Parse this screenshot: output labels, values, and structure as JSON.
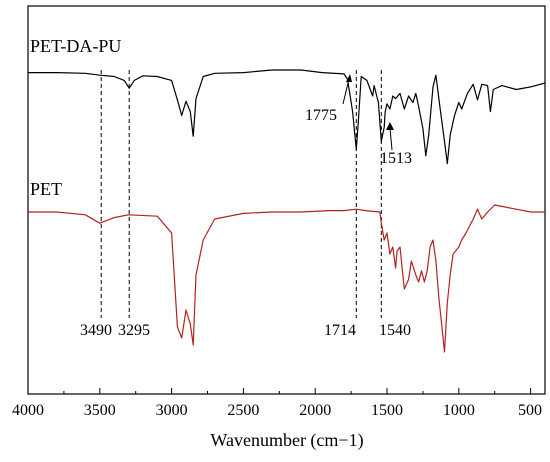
{
  "chart_data": {
    "type": "line",
    "title": "",
    "xlabel": "Wavenumber (cm−1)",
    "ylabel": "",
    "xlim": [
      4000,
      400
    ],
    "x_reversed": true,
    "x_ticks": [
      "4000",
      "3500",
      "3000",
      "2500",
      "2000",
      "1500",
      "1000",
      "500"
    ],
    "x_tick_values": [
      4000,
      3500,
      3000,
      2500,
      2000,
      1500,
      1000,
      500
    ],
    "y_ticks": "none",
    "grid": false,
    "legend": "none",
    "series": [
      {
        "name": "PET-DA-PU",
        "color": "#000000",
        "points": [
          [
            4000,
            0.02
          ],
          [
            3800,
            0.02
          ],
          [
            3600,
            0.025
          ],
          [
            3500,
            0.04
          ],
          [
            3400,
            0.05
          ],
          [
            3330,
            0.08
          ],
          [
            3295,
            0.14
          ],
          [
            3260,
            0.08
          ],
          [
            3200,
            0.045
          ],
          [
            3100,
            0.05
          ],
          [
            3000,
            0.08
          ],
          [
            2960,
            0.23
          ],
          [
            2930,
            0.35
          ],
          [
            2900,
            0.24
          ],
          [
            2870,
            0.32
          ],
          [
            2850,
            0.51
          ],
          [
            2830,
            0.22
          ],
          [
            2780,
            0.05
          ],
          [
            2700,
            0.025
          ],
          [
            2500,
            0.02
          ],
          [
            2300,
            0.0
          ],
          [
            2100,
            0.0
          ],
          [
            1950,
            0.02
          ],
          [
            1800,
            0.03
          ],
          [
            1775,
            0.07
          ],
          [
            1740,
            0.32
          ],
          [
            1714,
            0.61
          ],
          [
            1700,
            0.4
          ],
          [
            1680,
            0.05
          ],
          [
            1640,
            0.08
          ],
          [
            1600,
            0.2
          ],
          [
            1590,
            0.12
          ],
          [
            1560,
            0.25
          ],
          [
            1540,
            0.55
          ],
          [
            1520,
            0.44
          ],
          [
            1513,
            0.32
          ],
          [
            1500,
            0.26
          ],
          [
            1480,
            0.3
          ],
          [
            1460,
            0.2
          ],
          [
            1440,
            0.22
          ],
          [
            1410,
            0.18
          ],
          [
            1380,
            0.3
          ],
          [
            1350,
            0.2
          ],
          [
            1320,
            0.25
          ],
          [
            1300,
            0.18
          ],
          [
            1280,
            0.28
          ],
          [
            1250,
            0.45
          ],
          [
            1230,
            0.66
          ],
          [
            1210,
            0.5
          ],
          [
            1180,
            0.13
          ],
          [
            1160,
            0.04
          ],
          [
            1130,
            0.3
          ],
          [
            1100,
            0.55
          ],
          [
            1080,
            0.72
          ],
          [
            1060,
            0.5
          ],
          [
            1030,
            0.35
          ],
          [
            1000,
            0.25
          ],
          [
            980,
            0.3
          ],
          [
            940,
            0.18
          ],
          [
            900,
            0.11
          ],
          [
            870,
            0.23
          ],
          [
            840,
            0.11
          ],
          [
            800,
            0.12
          ],
          [
            780,
            0.32
          ],
          [
            760,
            0.15
          ],
          [
            700,
            0.12
          ],
          [
            600,
            0.15
          ],
          [
            500,
            0.13
          ],
          [
            400,
            0.1
          ]
        ]
      },
      {
        "name": "PET",
        "color": "#b22222",
        "points": [
          [
            4000,
            0.0
          ],
          [
            3800,
            0.0
          ],
          [
            3600,
            0.02
          ],
          [
            3500,
            0.08
          ],
          [
            3400,
            0.04
          ],
          [
            3300,
            0.02
          ],
          [
            3100,
            0.03
          ],
          [
            3000,
            0.15
          ],
          [
            2960,
            0.82
          ],
          [
            2930,
            0.9
          ],
          [
            2900,
            0.7
          ],
          [
            2870,
            0.8
          ],
          [
            2850,
            0.95
          ],
          [
            2830,
            0.45
          ],
          [
            2780,
            0.2
          ],
          [
            2700,
            0.05
          ],
          [
            2500,
            0.01
          ],
          [
            2300,
            0.0
          ],
          [
            2100,
            0.0
          ],
          [
            1900,
            -0.01
          ],
          [
            1800,
            -0.01
          ],
          [
            1714,
            -0.02
          ],
          [
            1650,
            -0.01
          ],
          [
            1550,
            0.0
          ],
          [
            1540,
            0.08
          ],
          [
            1520,
            0.2
          ],
          [
            1500,
            0.15
          ],
          [
            1480,
            0.3
          ],
          [
            1460,
            0.25
          ],
          [
            1440,
            0.4
          ],
          [
            1430,
            0.28
          ],
          [
            1410,
            0.25
          ],
          [
            1380,
            0.55
          ],
          [
            1350,
            0.48
          ],
          [
            1330,
            0.35
          ],
          [
            1300,
            0.45
          ],
          [
            1280,
            0.5
          ],
          [
            1260,
            0.42
          ],
          [
            1240,
            0.5
          ],
          [
            1220,
            0.42
          ],
          [
            1200,
            0.25
          ],
          [
            1180,
            0.2
          ],
          [
            1160,
            0.35
          ],
          [
            1140,
            0.6
          ],
          [
            1120,
            0.8
          ],
          [
            1100,
            1.0
          ],
          [
            1080,
            0.65
          ],
          [
            1060,
            0.45
          ],
          [
            1040,
            0.3
          ],
          [
            1000,
            0.25
          ],
          [
            980,
            0.2
          ],
          [
            950,
            0.15
          ],
          [
            900,
            0.05
          ],
          [
            870,
            -0.02
          ],
          [
            840,
            0.05
          ],
          [
            800,
            0.0
          ],
          [
            750,
            -0.05
          ],
          [
            700,
            -0.04
          ],
          [
            600,
            -0.02
          ],
          [
            500,
            0.0
          ],
          [
            400,
            0.0
          ]
        ]
      }
    ],
    "annotations": {
      "dashed_lines": [
        3490,
        3295,
        1714,
        1540
      ],
      "bottom_labels": [
        {
          "text": "3490",
          "x": 3490
        },
        {
          "text": "3295",
          "x": 3295
        },
        {
          "text": "1714",
          "x": 1714
        },
        {
          "text": "1540",
          "x": 1540
        }
      ],
      "upper_labels": [
        {
          "text": "1775",
          "x": 1775
        },
        {
          "text": "1513",
          "x": 1513
        }
      ]
    }
  }
}
